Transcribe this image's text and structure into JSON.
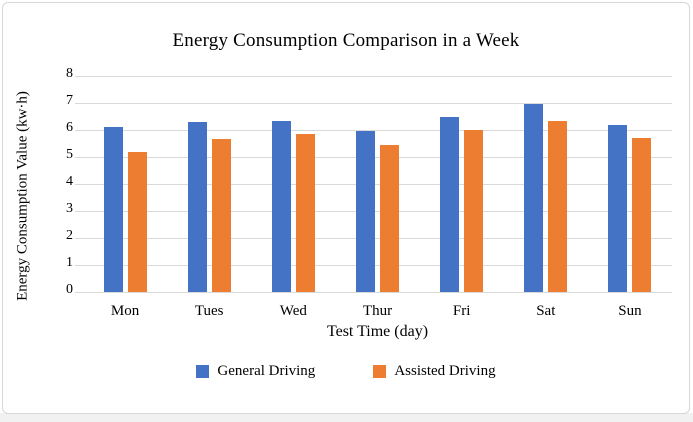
{
  "frame": {
    "card_background": "#ffffff",
    "card_border_color": "#d7d7d7",
    "bottom_strip_color": "#f1f1f1",
    "gridline_color": "#d9d9d9",
    "text_color": "#000000"
  },
  "chart_data": {
    "type": "bar",
    "title": "Energy Consumption Comparison in a Week",
    "xlabel": "Test Time (day)",
    "ylabel": "Energy Consumption Value (kw·h)",
    "categories": [
      "Mon",
      "Tues",
      "Wed",
      "Thur",
      "Fri",
      "Sat",
      "Sun"
    ],
    "series": [
      {
        "name": "General Driving",
        "color": "#4472C4",
        "values": [
          6.1,
          6.3,
          6.35,
          5.95,
          6.5,
          6.95,
          6.2
        ]
      },
      {
        "name": "Assisted Driving",
        "color": "#ED7D31",
        "values": [
          5.2,
          5.65,
          5.85,
          5.45,
          6.0,
          6.35,
          5.7
        ]
      }
    ],
    "ylim": [
      0,
      8
    ],
    "ytick_step": 1,
    "yticks": [
      0,
      1,
      2,
      3,
      4,
      5,
      6,
      7,
      8
    ],
    "grid": true,
    "legend_position": "bottom"
  }
}
